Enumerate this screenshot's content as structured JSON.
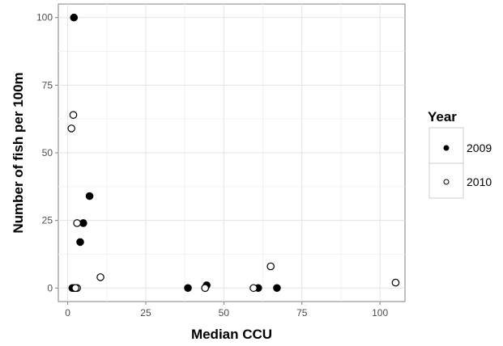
{
  "chart_data": {
    "type": "scatter",
    "xlabel": "Median CCU",
    "ylabel": "Number of fish per 100m",
    "xlim": [
      -3,
      108
    ],
    "ylim": [
      -5,
      105
    ],
    "xticks": [
      0,
      25,
      50,
      75,
      100
    ],
    "yticks": [
      0,
      25,
      50,
      75,
      100
    ],
    "grid": true,
    "legend": {
      "title": "Year",
      "placement": "right"
    },
    "series": [
      {
        "name": "2009",
        "marker": "filled-circle",
        "color": "#000000",
        "points": [
          [
            2,
            100
          ],
          [
            7,
            34
          ],
          [
            5,
            24
          ],
          [
            4,
            17
          ],
          [
            1.5,
            0
          ],
          [
            2,
            0
          ],
          [
            38.5,
            0
          ],
          [
            44.5,
            1
          ],
          [
            44,
            0
          ],
          [
            61,
            0
          ],
          [
            67,
            0
          ]
        ]
      },
      {
        "name": "2010",
        "marker": "open-circle",
        "color": "#000000",
        "points": [
          [
            1.8,
            64
          ],
          [
            1.2,
            59
          ],
          [
            3,
            24
          ],
          [
            10.5,
            4
          ],
          [
            3,
            0
          ],
          [
            2.5,
            0
          ],
          [
            44,
            0
          ],
          [
            59.5,
            0
          ],
          [
            65,
            8
          ],
          [
            105,
            2
          ]
        ]
      }
    ]
  }
}
